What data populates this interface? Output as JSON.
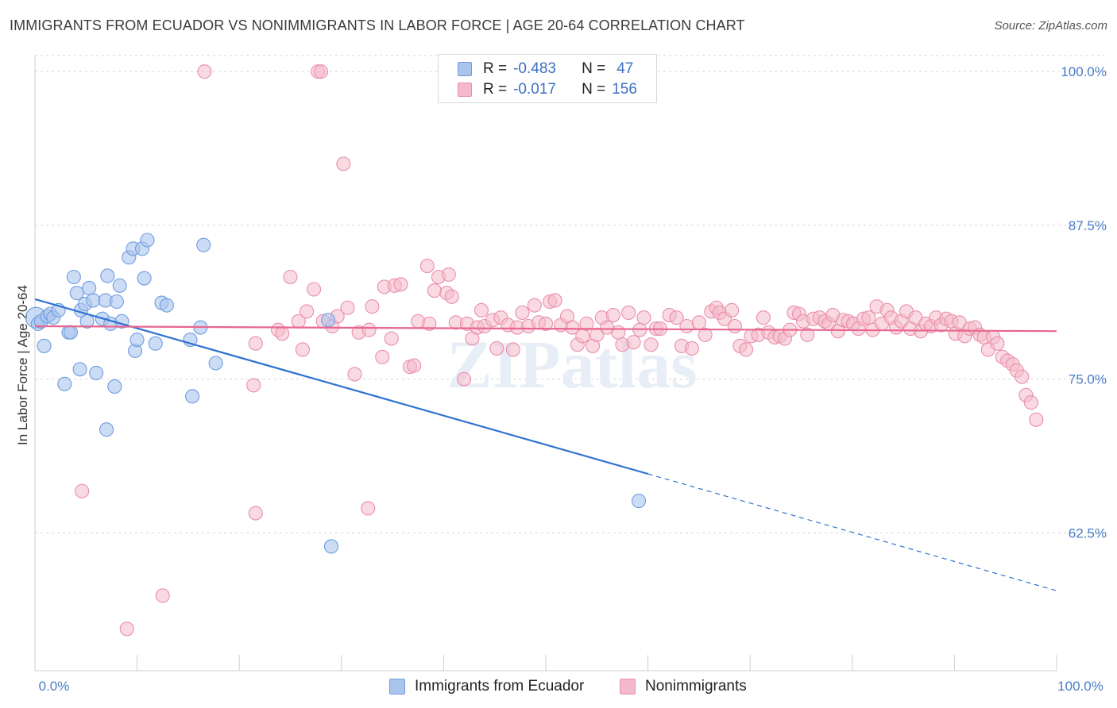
{
  "title": "IMMIGRANTS FROM ECUADOR VS NONIMMIGRANTS IN LABOR FORCE | AGE 20-64 CORRELATION CHART",
  "source": "Source: ZipAtlas.com",
  "watermark": "ZIPatlas",
  "legend": {
    "rows": [
      {
        "r_label": "R =",
        "r_value": "-0.483",
        "n_label": "N =",
        "n_value": "47"
      },
      {
        "r_label": "R =",
        "r_value": "-0.017",
        "n_label": "N =",
        "n_value": "156"
      }
    ]
  },
  "bottom_legend": [
    "Immigrants from Ecuador",
    "Nonimmigrants"
  ],
  "colors": {
    "blue_fill": "#aac4ec",
    "blue_stroke": "#6f9de0",
    "blue_line": "#2f72d0",
    "pink_fill": "#f4b9cb",
    "pink_stroke": "#ea8fab",
    "pink_line": "#e8668f",
    "grid": "#d6d6d6",
    "tick_text": "#4a7cc7"
  },
  "chart_data": {
    "type": "scatter",
    "title": "IMMIGRANTS FROM ECUADOR VS NONIMMIGRANTS IN LABOR FORCE | AGE 20-64 CORRELATION CHART",
    "xlabel": "",
    "ylabel": "In Labor Force | Age 20-64",
    "xlim": [
      0,
      100
    ],
    "ylim": [
      51.3,
      101.3
    ],
    "x_tick_labels": [
      "0.0%",
      "100.0%"
    ],
    "y_ticks": [
      62.5,
      75.0,
      87.5,
      100.0
    ],
    "y_tick_labels": [
      "62.5%",
      "75.0%",
      "87.5%",
      "100.0%"
    ],
    "grid": true,
    "series": [
      {
        "name": "Immigrants from Ecuador",
        "r": -0.483,
        "n": 47,
        "trend": {
          "x0": 0,
          "y0": 81.5,
          "x1": 60,
          "y1": 67.3,
          "dash_to_x": 100,
          "dash_to_y": 57.8
        },
        "points": [
          [
            0.1,
            80.0
          ],
          [
            0.3,
            79.5
          ],
          [
            0.6,
            79.7
          ],
          [
            0.9,
            77.7
          ],
          [
            1.2,
            80.1
          ],
          [
            1.5,
            80.3
          ],
          [
            1.8,
            80.0
          ],
          [
            2.3,
            80.6
          ],
          [
            2.9,
            74.6
          ],
          [
            3.3,
            78.8
          ],
          [
            3.5,
            78.8
          ],
          [
            3.8,
            83.3
          ],
          [
            4.1,
            82.0
          ],
          [
            4.4,
            75.8
          ],
          [
            4.5,
            80.6
          ],
          [
            4.9,
            81.1
          ],
          [
            5.1,
            79.7
          ],
          [
            5.3,
            82.4
          ],
          [
            5.7,
            81.4
          ],
          [
            6.0,
            75.5
          ],
          [
            6.6,
            79.9
          ],
          [
            6.9,
            81.4
          ],
          [
            7.1,
            83.4
          ],
          [
            7.4,
            79.5
          ],
          [
            7.8,
            74.4
          ],
          [
            8.0,
            81.3
          ],
          [
            8.3,
            82.6
          ],
          [
            8.5,
            79.7
          ],
          [
            9.2,
            84.9
          ],
          [
            9.6,
            85.6
          ],
          [
            9.8,
            77.3
          ],
          [
            10.0,
            78.2
          ],
          [
            10.5,
            85.6
          ],
          [
            10.7,
            83.2
          ],
          [
            11.0,
            86.3
          ],
          [
            11.8,
            77.9
          ],
          [
            12.4,
            81.2
          ],
          [
            12.9,
            81.0
          ],
          [
            7.0,
            70.9
          ],
          [
            15.2,
            78.2
          ],
          [
            15.4,
            73.6
          ],
          [
            16.2,
            79.2
          ],
          [
            16.5,
            85.9
          ],
          [
            17.7,
            76.3
          ],
          [
            28.7,
            79.8
          ],
          [
            29.0,
            61.4
          ],
          [
            59.1,
            65.1
          ]
        ]
      },
      {
        "name": "Nonimmigrants",
        "r": -0.017,
        "n": 156,
        "trend": {
          "x0": 0,
          "y0": 79.3,
          "x1": 100,
          "y1": 78.9
        },
        "points": [
          [
            16.6,
            100.0
          ],
          [
            27.7,
            100.0
          ],
          [
            28.0,
            100.0
          ],
          [
            30.2,
            92.5
          ],
          [
            4.6,
            65.9
          ],
          [
            9.0,
            54.7
          ],
          [
            12.5,
            57.4
          ],
          [
            21.6,
            64.1
          ],
          [
            32.6,
            64.5
          ],
          [
            21.4,
            74.5
          ],
          [
            21.6,
            77.9
          ],
          [
            23.8,
            79.0
          ],
          [
            24.2,
            78.7
          ],
          [
            25.0,
            83.3
          ],
          [
            25.8,
            79.7
          ],
          [
            26.2,
            77.4
          ],
          [
            26.6,
            80.5
          ],
          [
            27.3,
            82.3
          ],
          [
            28.2,
            79.7
          ],
          [
            29.1,
            79.3
          ],
          [
            29.6,
            80.1
          ],
          [
            30.6,
            80.8
          ],
          [
            31.3,
            75.4
          ],
          [
            31.7,
            78.8
          ],
          [
            32.7,
            79.0
          ],
          [
            33.0,
            80.9
          ],
          [
            34.0,
            76.8
          ],
          [
            34.2,
            82.5
          ],
          [
            34.9,
            78.3
          ],
          [
            35.2,
            82.6
          ],
          [
            35.8,
            82.7
          ],
          [
            36.7,
            76.0
          ],
          [
            37.1,
            76.1
          ],
          [
            37.5,
            79.7
          ],
          [
            38.4,
            84.2
          ],
          [
            38.6,
            79.5
          ],
          [
            39.1,
            82.2
          ],
          [
            39.5,
            83.3
          ],
          [
            40.3,
            82.0
          ],
          [
            40.5,
            83.5
          ],
          [
            40.8,
            81.7
          ],
          [
            41.2,
            79.6
          ],
          [
            42.0,
            75.0
          ],
          [
            42.3,
            79.5
          ],
          [
            42.8,
            78.3
          ],
          [
            43.3,
            79.2
          ],
          [
            43.7,
            80.6
          ],
          [
            44.0,
            79.3
          ],
          [
            44.8,
            79.8
          ],
          [
            45.2,
            77.5
          ],
          [
            45.6,
            80.0
          ],
          [
            46.3,
            79.4
          ],
          [
            46.8,
            77.4
          ],
          [
            47.2,
            79.2
          ],
          [
            47.7,
            80.4
          ],
          [
            48.3,
            79.3
          ],
          [
            48.9,
            81.0
          ],
          [
            49.3,
            79.6
          ],
          [
            50.0,
            79.5
          ],
          [
            50.4,
            81.3
          ],
          [
            50.9,
            81.4
          ],
          [
            51.5,
            79.4
          ],
          [
            52.1,
            80.1
          ],
          [
            52.6,
            79.2
          ],
          [
            53.1,
            77.8
          ],
          [
            53.6,
            78.5
          ],
          [
            54.0,
            79.5
          ],
          [
            54.6,
            77.7
          ],
          [
            55.0,
            78.6
          ],
          [
            55.5,
            80.0
          ],
          [
            56.0,
            79.2
          ],
          [
            56.6,
            80.2
          ],
          [
            57.1,
            78.8
          ],
          [
            57.5,
            77.8
          ],
          [
            58.1,
            80.4
          ],
          [
            58.6,
            78.0
          ],
          [
            59.2,
            79.0
          ],
          [
            59.6,
            80.0
          ],
          [
            60.3,
            77.8
          ],
          [
            60.8,
            79.1
          ],
          [
            61.2,
            79.1
          ],
          [
            62.1,
            80.2
          ],
          [
            62.8,
            80.0
          ],
          [
            63.3,
            77.7
          ],
          [
            63.8,
            79.3
          ],
          [
            64.3,
            77.5
          ],
          [
            65.0,
            79.6
          ],
          [
            65.6,
            78.6
          ],
          [
            66.2,
            80.5
          ],
          [
            66.7,
            80.8
          ],
          [
            67.0,
            80.4
          ],
          [
            67.5,
            79.9
          ],
          [
            68.2,
            80.6
          ],
          [
            68.5,
            79.3
          ],
          [
            69.0,
            77.7
          ],
          [
            69.6,
            77.4
          ],
          [
            70.1,
            78.5
          ],
          [
            70.8,
            78.6
          ],
          [
            71.3,
            80.0
          ],
          [
            71.8,
            78.8
          ],
          [
            72.4,
            78.4
          ],
          [
            72.9,
            78.5
          ],
          [
            73.4,
            78.3
          ],
          [
            73.9,
            79.0
          ],
          [
            74.3,
            80.4
          ],
          [
            74.8,
            80.3
          ],
          [
            75.2,
            79.7
          ],
          [
            75.6,
            78.6
          ],
          [
            76.2,
            79.9
          ],
          [
            76.8,
            80.0
          ],
          [
            77.3,
            79.7
          ],
          [
            77.7,
            79.5
          ],
          [
            78.1,
            80.2
          ],
          [
            78.6,
            78.9
          ],
          [
            79.1,
            79.8
          ],
          [
            79.6,
            79.7
          ],
          [
            80.1,
            79.5
          ],
          [
            80.6,
            79.1
          ],
          [
            81.1,
            79.9
          ],
          [
            81.6,
            80.0
          ],
          [
            82.0,
            79.0
          ],
          [
            82.4,
            80.9
          ],
          [
            82.9,
            79.5
          ],
          [
            83.4,
            80.6
          ],
          [
            83.8,
            80.0
          ],
          [
            84.3,
            79.2
          ],
          [
            84.8,
            79.7
          ],
          [
            85.3,
            80.5
          ],
          [
            85.7,
            79.1
          ],
          [
            86.2,
            80.0
          ],
          [
            86.7,
            78.9
          ],
          [
            87.2,
            79.5
          ],
          [
            87.7,
            79.3
          ],
          [
            88.2,
            80.0
          ],
          [
            88.7,
            79.4
          ],
          [
            89.2,
            79.9
          ],
          [
            89.7,
            79.7
          ],
          [
            90.1,
            78.7
          ],
          [
            90.5,
            79.6
          ],
          [
            91.0,
            78.5
          ],
          [
            91.5,
            79.1
          ],
          [
            92.0,
            79.2
          ],
          [
            92.5,
            78.6
          ],
          [
            92.9,
            78.4
          ],
          [
            93.3,
            77.4
          ],
          [
            93.8,
            78.4
          ],
          [
            94.2,
            77.9
          ],
          [
            94.7,
            76.8
          ],
          [
            95.2,
            76.5
          ],
          [
            95.7,
            76.2
          ],
          [
            96.1,
            75.7
          ],
          [
            96.6,
            75.2
          ],
          [
            97.0,
            73.7
          ],
          [
            97.5,
            73.1
          ],
          [
            98.0,
            71.7
          ]
        ]
      }
    ]
  }
}
